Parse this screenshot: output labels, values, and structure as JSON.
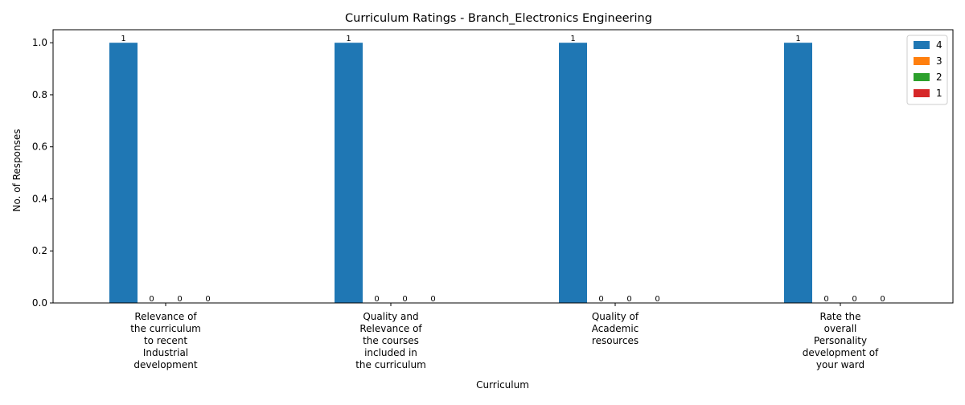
{
  "chart_data": {
    "type": "bar",
    "title": "Curriculum Ratings - Branch_Electronics Engineering",
    "xlabel": "Curriculum",
    "ylabel": "No. of Responses",
    "categories": [
      [
        "Relevance of",
        "the curriculum",
        "to recent",
        "Industrial",
        "development"
      ],
      [
        "Quality and",
        "Relevance of",
        "the courses",
        "included in",
        "the curriculum"
      ],
      [
        "Quality of",
        "Academic",
        "resources"
      ],
      [
        "Rate the",
        "overall",
        "Personality",
        "development of",
        "your ward"
      ]
    ],
    "series": [
      {
        "name": "4",
        "color": "#1f77b4",
        "values": [
          1,
          1,
          1,
          1
        ]
      },
      {
        "name": "3",
        "color": "#ff7f0e",
        "values": [
          0,
          0,
          0,
          0
        ]
      },
      {
        "name": "2",
        "color": "#2ca02c",
        "values": [
          0,
          0,
          0,
          0
        ]
      },
      {
        "name": "1",
        "color": "#d62728",
        "values": [
          0,
          0,
          0,
          0
        ]
      }
    ],
    "ylim": [
      0,
      1.05
    ],
    "yticks": [
      "0.0",
      "0.2",
      "0.4",
      "0.6",
      "0.8",
      "1.0"
    ],
    "ytick_values": [
      0,
      0.2,
      0.4,
      0.6,
      0.8,
      1.0
    ],
    "grid": false,
    "legend_position": "top-right"
  }
}
